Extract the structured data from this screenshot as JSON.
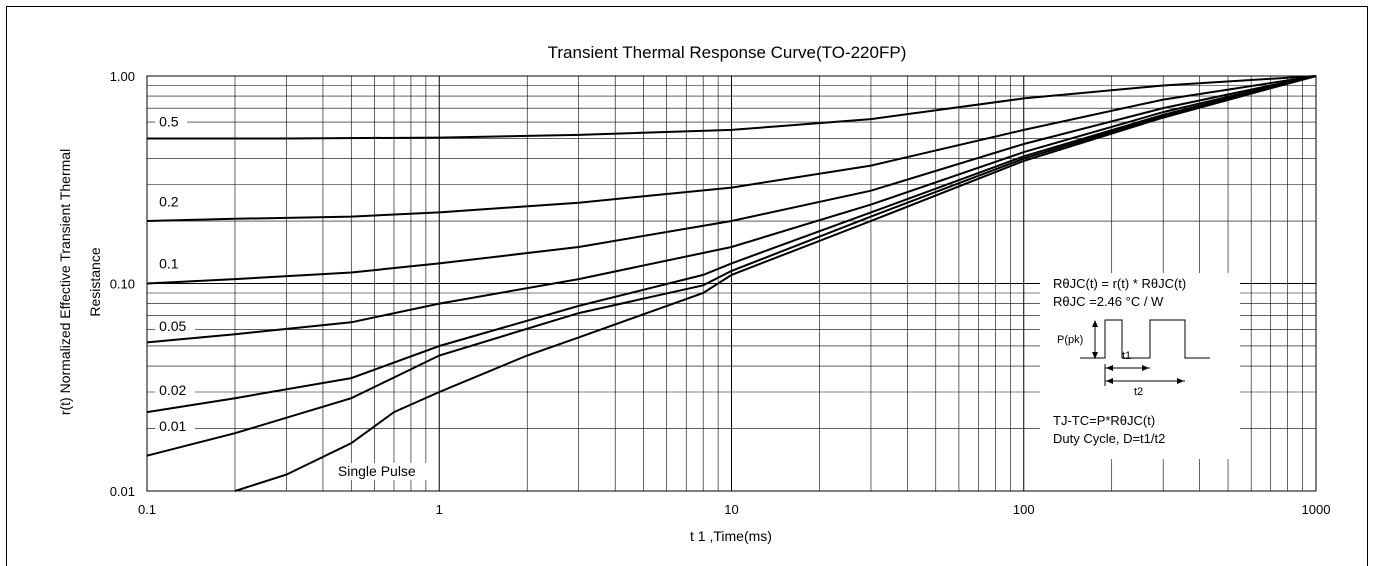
{
  "chart_data": {
    "type": "line",
    "title": "Transient Thermal Response Curve(TO-220FP)",
    "xlabel": "t 1 ,Time(ms)",
    "ylabel_line1": "r(t) Normalized Effective Transient Thermal",
    "ylabel_line2": "Resistance",
    "x_scale": "log",
    "y_scale": "log",
    "xlim": [
      0.1,
      1000
    ],
    "ylim": [
      0.01,
      1.0
    ],
    "grid": true,
    "x_ticks": [
      {
        "value": 0.1,
        "label": "0.1"
      },
      {
        "value": 1,
        "label": "1"
      },
      {
        "value": 10,
        "label": "10"
      },
      {
        "value": 100,
        "label": "100"
      },
      {
        "value": 1000,
        "label": "1000"
      }
    ],
    "y_ticks": [
      {
        "value": 0.01,
        "label": "0.01"
      },
      {
        "value": 0.1,
        "label": "0.10"
      },
      {
        "value": 1.0,
        "label": "1.00"
      }
    ],
    "series": [
      {
        "name": "0.5",
        "label_at": [
          0.11,
          0.57
        ],
        "points": [
          [
            0.1,
            0.5
          ],
          [
            0.3,
            0.5
          ],
          [
            1,
            0.505
          ],
          [
            3,
            0.52
          ],
          [
            10,
            0.55
          ],
          [
            30,
            0.62
          ],
          [
            100,
            0.78
          ],
          [
            300,
            0.9
          ],
          [
            1000,
            1.0
          ]
        ]
      },
      {
        "name": "0.2",
        "label_at": [
          0.11,
          0.235
        ],
        "points": [
          [
            0.1,
            0.2
          ],
          [
            0.2,
            0.205
          ],
          [
            0.5,
            0.21
          ],
          [
            1,
            0.22
          ],
          [
            3,
            0.245
          ],
          [
            10,
            0.29
          ],
          [
            30,
            0.37
          ],
          [
            100,
            0.55
          ],
          [
            300,
            0.77
          ],
          [
            1000,
            1.0
          ]
        ]
      },
      {
        "name": "0.1",
        "label_at": [
          0.11,
          0.118
        ],
        "points": [
          [
            0.1,
            0.1
          ],
          [
            0.2,
            0.105
          ],
          [
            0.5,
            0.113
          ],
          [
            1,
            0.125
          ],
          [
            3,
            0.15
          ],
          [
            10,
            0.2
          ],
          [
            30,
            0.28
          ],
          [
            100,
            0.47
          ],
          [
            300,
            0.7
          ],
          [
            1000,
            1.0
          ]
        ]
      },
      {
        "name": "0.05",
        "label_at": [
          0.11,
          0.059
        ],
        "points": [
          [
            0.1,
            0.052
          ],
          [
            0.2,
            0.057
          ],
          [
            0.5,
            0.065
          ],
          [
            1,
            0.08
          ],
          [
            3,
            0.105
          ],
          [
            10,
            0.15
          ],
          [
            30,
            0.24
          ],
          [
            100,
            0.43
          ],
          [
            300,
            0.67
          ],
          [
            1000,
            1.0
          ]
        ]
      },
      {
        "name": "0.02",
        "label_at": [
          0.11,
          0.029
        ],
        "points": [
          [
            0.1,
            0.024
          ],
          [
            0.2,
            0.028
          ],
          [
            0.5,
            0.035
          ],
          [
            1,
            0.05
          ],
          [
            3,
            0.078
          ],
          [
            8,
            0.11
          ],
          [
            10,
            0.125
          ],
          [
            30,
            0.22
          ],
          [
            100,
            0.41
          ],
          [
            300,
            0.65
          ],
          [
            1000,
            1.0
          ]
        ]
      },
      {
        "name": "0.01",
        "label_at": [
          0.11,
          0.0195
        ],
        "points": [
          [
            0.1,
            0.0148
          ],
          [
            0.2,
            0.019
          ],
          [
            0.5,
            0.028
          ],
          [
            1,
            0.045
          ],
          [
            3,
            0.072
          ],
          [
            8,
            0.098
          ],
          [
            10,
            0.115
          ],
          [
            30,
            0.21
          ],
          [
            100,
            0.4
          ],
          [
            300,
            0.64
          ],
          [
            1000,
            1.0
          ]
        ]
      },
      {
        "name": "Single Pulse",
        "label_at": [
          0.45,
          0.0118
        ],
        "points": [
          [
            0.2,
            0.01
          ],
          [
            0.3,
            0.012
          ],
          [
            0.5,
            0.017
          ],
          [
            0.7,
            0.024
          ],
          [
            1,
            0.03
          ],
          [
            2,
            0.045
          ],
          [
            3,
            0.055
          ],
          [
            8,
            0.09
          ],
          [
            10,
            0.11
          ],
          [
            30,
            0.2
          ],
          [
            100,
            0.39
          ],
          [
            300,
            0.63
          ],
          [
            1000,
            1.0
          ]
        ]
      }
    ],
    "annotations": {
      "formula1": "RθJC(t) = r(t) * RθJC(t)",
      "formula2": "RθJC =2.46 °C / W",
      "ppk_label": "P(pk)",
      "t1_label": "t1",
      "t2_label": "t2",
      "formula3": "TJ-TC=P*RθJC(t)",
      "formula4": "Duty Cycle, D=t1/t2"
    }
  }
}
